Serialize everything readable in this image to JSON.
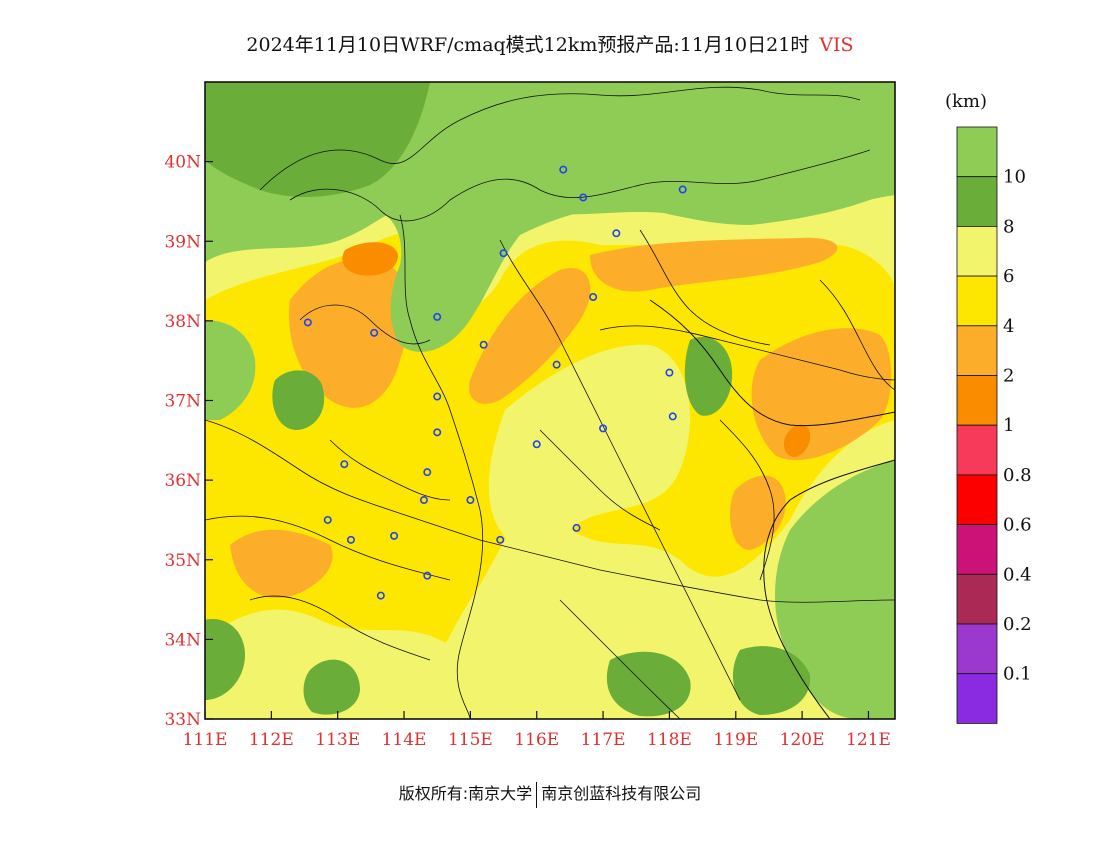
{
  "title": {
    "text": "2024年11月10日WRF/cmaq模式12km预报产品:11月10日21时",
    "variable": "VIS"
  },
  "map": {
    "lon_range": [
      111,
      121.4
    ],
    "lat_range": [
      33,
      41
    ],
    "lon_ticks": [
      {
        "value": 111,
        "label": "111E"
      },
      {
        "value": 112,
        "label": "112E"
      },
      {
        "value": 113,
        "label": "113E"
      },
      {
        "value": 114,
        "label": "114E"
      },
      {
        "value": 115,
        "label": "115E"
      },
      {
        "value": 116,
        "label": "116E"
      },
      {
        "value": 117,
        "label": "117E"
      },
      {
        "value": 118,
        "label": "118E"
      },
      {
        "value": 119,
        "label": "119E"
      },
      {
        "value": 120,
        "label": "120E"
      },
      {
        "value": 121,
        "label": "121E"
      }
    ],
    "lat_ticks": [
      {
        "value": 33,
        "label": "33N"
      },
      {
        "value": 34,
        "label": "34N"
      },
      {
        "value": 35,
        "label": "35N"
      },
      {
        "value": 36,
        "label": "36N"
      },
      {
        "value": 37,
        "label": "37N"
      },
      {
        "value": 38,
        "label": "38N"
      },
      {
        "value": 39,
        "label": "39N"
      },
      {
        "value": 40,
        "label": "40N"
      }
    ],
    "background_color": "#8fcc55",
    "cities": [
      [
        116.4,
        39.9
      ],
      [
        116.7,
        39.55
      ],
      [
        118.2,
        39.65
      ],
      [
        117.2,
        39.1
      ],
      [
        115.5,
        38.85
      ],
      [
        116.85,
        38.3
      ],
      [
        114.5,
        38.05
      ],
      [
        112.55,
        37.98
      ],
      [
        113.55,
        37.85
      ],
      [
        115.2,
        37.7
      ],
      [
        116.3,
        37.45
      ],
      [
        118.0,
        37.35
      ],
      [
        114.5,
        37.05
      ],
      [
        117.0,
        36.65
      ],
      [
        118.05,
        36.8
      ],
      [
        114.5,
        36.6
      ],
      [
        116.0,
        36.45
      ],
      [
        113.1,
        36.2
      ],
      [
        114.35,
        36.1
      ],
      [
        114.3,
        35.75
      ],
      [
        115.0,
        35.75
      ],
      [
        112.85,
        35.5
      ],
      [
        113.2,
        35.25
      ],
      [
        113.85,
        35.3
      ],
      [
        115.45,
        35.25
      ],
      [
        116.6,
        35.4
      ],
      [
        114.35,
        34.8
      ],
      [
        113.65,
        34.55
      ]
    ]
  },
  "colorbar": {
    "unit": "(km)",
    "colors": [
      "#8fcc55",
      "#6aad38",
      "#f2f56b",
      "#fde600",
      "#fcae2a",
      "#fa8c00",
      "#f73a5a",
      "#fc0000",
      "#cc1177",
      "#aa2a55",
      "#9b39cf",
      "#8a2be2"
    ],
    "labels": [
      "10",
      "8",
      "6",
      "4",
      "2",
      "1",
      "0.8",
      "0.6",
      "0.4",
      "0.2",
      "0.1"
    ]
  },
  "footer": {
    "copyright": "版权所有:南京大学",
    "company": "南京创蓝科技有限公司"
  }
}
